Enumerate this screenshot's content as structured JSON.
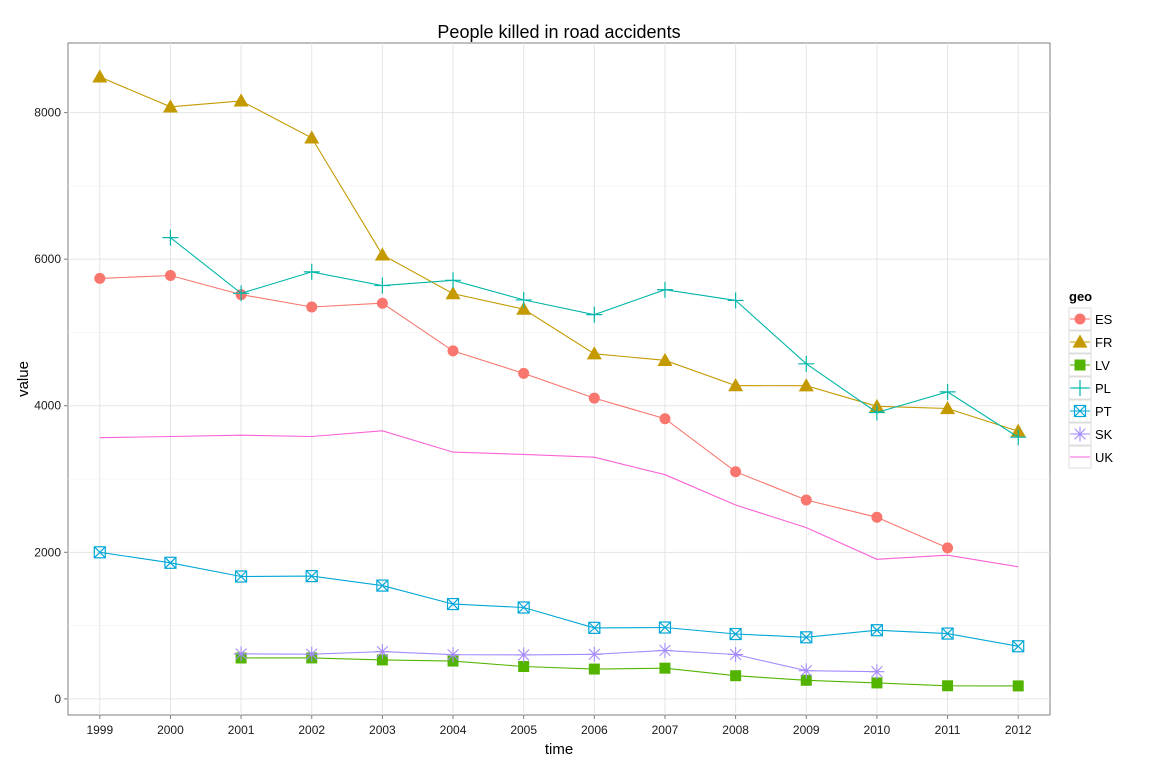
{
  "chart_data": {
    "type": "line",
    "title": "People killed in road accidents",
    "xlabel": "time",
    "ylabel": "value",
    "x": [
      1999,
      2000,
      2001,
      2002,
      2003,
      2004,
      2005,
      2006,
      2007,
      2008,
      2009,
      2010,
      2011,
      2012
    ],
    "xlim": [
      1998.55,
      2012.45
    ],
    "ylim": [
      -220,
      8950
    ],
    "yticks": [
      0,
      2000,
      4000,
      6000,
      8000
    ],
    "grid": true,
    "legend": {
      "title": "geo",
      "placement": "right"
    },
    "series": [
      {
        "name": "ES",
        "color": "#F8766D",
        "marker": "circle",
        "values": [
          5738,
          5777,
          5517,
          5347,
          5399,
          4749,
          4442,
          4104,
          3823,
          3100,
          2714,
          2478,
          2060,
          null
        ]
      },
      {
        "name": "FR",
        "color": "#C49A00",
        "marker": "triangle",
        "values": [
          8487,
          8079,
          8160,
          7655,
          6058,
          5530,
          5318,
          4709,
          4620,
          4275,
          4273,
          3992,
          3963,
          3653
        ]
      },
      {
        "name": "LV",
        "color": "#53B400",
        "marker": "square",
        "values": [
          null,
          null,
          558,
          559,
          532,
          516,
          442,
          407,
          419,
          316,
          254,
          218,
          179,
          177
        ]
      },
      {
        "name": "PL",
        "color": "#00B6A9",
        "marker": "plus",
        "values": [
          null,
          6294,
          5534,
          5827,
          5640,
          5712,
          5444,
          5243,
          5583,
          5437,
          4572,
          3908,
          4189,
          3571
        ]
      },
      {
        "name": "PT",
        "color": "#00A6D7",
        "marker": "boxcross",
        "values": [
          2000,
          1857,
          1670,
          1675,
          1546,
          1294,
          1247,
          969,
          974,
          885,
          840,
          937,
          891,
          718
        ]
      },
      {
        "name": "SK",
        "color": "#A58AFF",
        "marker": "asterisk",
        "values": [
          null,
          null,
          614,
          610,
          645,
          603,
          600,
          608,
          661,
          606,
          384,
          371,
          null,
          null
        ]
      },
      {
        "name": "UK",
        "color": "#FB61D7",
        "marker": "none",
        "values": [
          3564,
          3580,
          3598,
          3581,
          3658,
          3368,
          3336,
          3298,
          3059,
          2645,
          2337,
          1905,
          1960,
          1802
        ]
      }
    ]
  }
}
